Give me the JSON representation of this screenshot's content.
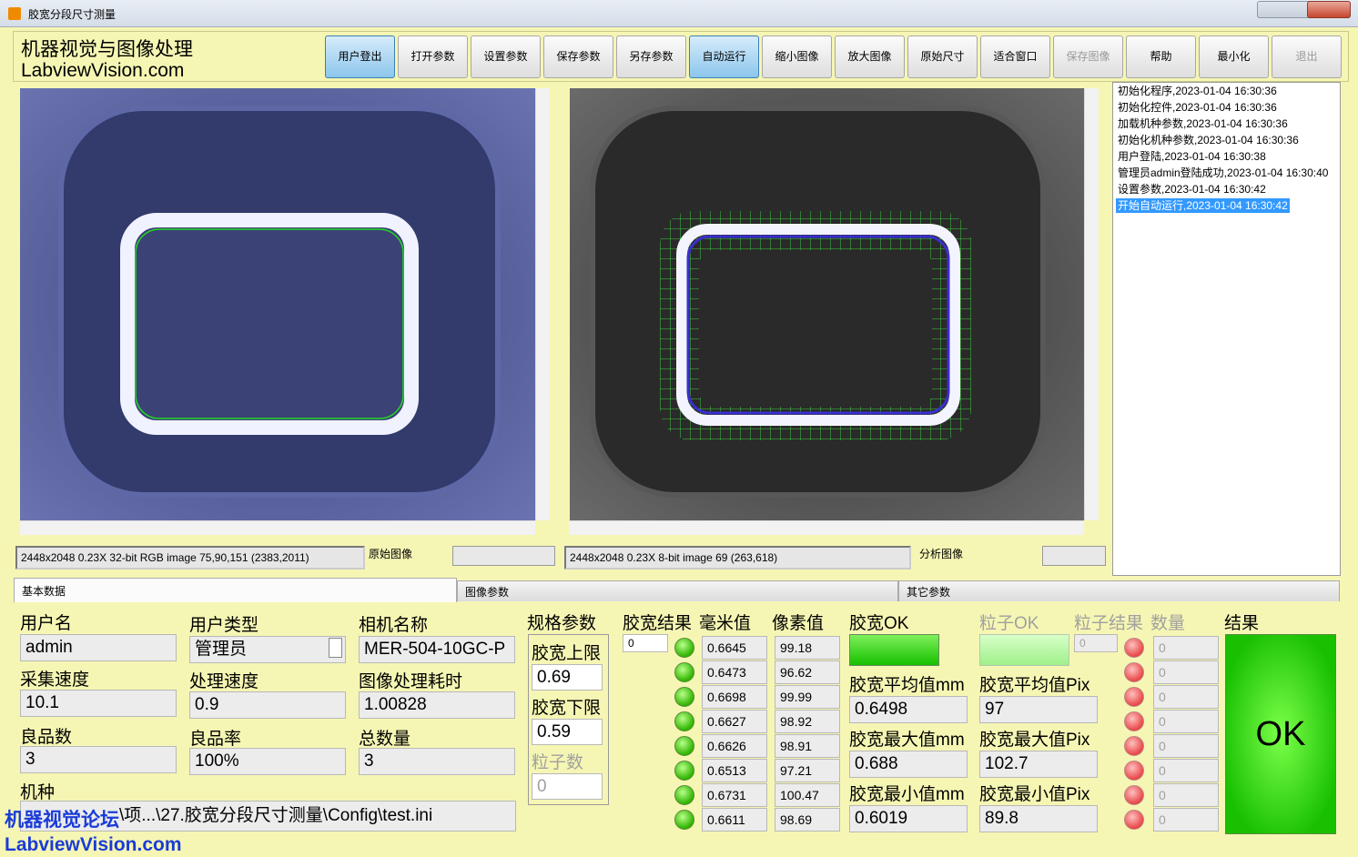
{
  "window": {
    "title": "胶宽分段尺寸测量"
  },
  "header": {
    "brand": [
      "机器视觉与图像处理",
      "LabviewVision.com"
    ]
  },
  "toolbar": {
    "buttons": [
      {
        "label": "用户登出",
        "state": "active"
      },
      {
        "label": "打开参数",
        "state": "normal"
      },
      {
        "label": "设置参数",
        "state": "normal"
      },
      {
        "label": "保存参数",
        "state": "normal"
      },
      {
        "label": "另存参数",
        "state": "normal"
      },
      {
        "label": "自动运行",
        "state": "active"
      },
      {
        "label": "缩小图像",
        "state": "normal"
      },
      {
        "label": "放大图像",
        "state": "normal"
      },
      {
        "label": "原始尺寸",
        "state": "normal"
      },
      {
        "label": "适合窗口",
        "state": "normal"
      },
      {
        "label": "保存图像",
        "state": "disabled"
      },
      {
        "label": "帮助",
        "state": "normal"
      },
      {
        "label": "最小化",
        "state": "normal"
      },
      {
        "label": "退出",
        "state": "disabled"
      }
    ]
  },
  "viewers": [
    {
      "caption": "原始图像",
      "status": "2448x2048 0.23X 32-bit RGB image 75,90,151    (2383,2011)"
    },
    {
      "caption": "分析图像",
      "status": "2448x2048 0.23X 8-bit image 69    (263,618)"
    }
  ],
  "log": {
    "entries": [
      "初始化程序,2023-01-04 16:30:36",
      "初始化控件,2023-01-04 16:30:36",
      "加载机种参数,2023-01-04 16:30:36",
      "初始化机种参数,2023-01-04 16:30:36",
      "用户登陆,2023-01-04 16:30:38",
      "管理员admin登陆成功,2023-01-04 16:30:40",
      "设置参数,2023-01-04 16:30:42",
      "开始自动运行,2023-01-04 16:30:42"
    ],
    "selected": 7
  },
  "tabs": {
    "labels": [
      "基本数据",
      "图像参数",
      "其它参数"
    ],
    "active": 0
  },
  "fields": [
    {
      "label": "用户名",
      "value": "admin"
    },
    {
      "label": "用户类型",
      "value": "管理员"
    },
    {
      "label": "相机名称",
      "value": "MER-504-10GC-P"
    },
    {
      "label": "采集速度",
      "value": "10.1"
    },
    {
      "label": "处理速度",
      "value": "0.9"
    },
    {
      "label": "图像处理耗时",
      "value": "1.00828"
    },
    {
      "label": "良品数",
      "value": "3"
    },
    {
      "label": "良品率",
      "value": "100%"
    },
    {
      "label": "总数量",
      "value": "3"
    }
  ],
  "machine": {
    "label": "机种",
    "value": "\\项...\\27.胶宽分段尺寸测量\\Config\\test.ini"
  },
  "spec": {
    "title": "规格参数",
    "items": [
      {
        "label": "胶宽上限",
        "value": "0.69"
      },
      {
        "label": "胶宽下限",
        "value": "0.59"
      },
      {
        "label": "粒子数",
        "value": "0"
      }
    ]
  },
  "results": {
    "width_result": {
      "label": "胶宽结果",
      "index": "0"
    },
    "mm": {
      "label": "毫米值",
      "values": [
        "0.6645",
        "0.6473",
        "0.6698",
        "0.6627",
        "0.6626",
        "0.6513",
        "0.6731",
        "0.6611"
      ]
    },
    "pix": {
      "label": "像素值",
      "values": [
        "99.18",
        "96.62",
        "99.99",
        "98.92",
        "98.91",
        "97.21",
        "100.47",
        "98.69"
      ]
    },
    "width_ok": {
      "label": "胶宽OK"
    },
    "width_stats": [
      {
        "label": "胶宽平均值mm",
        "value": "0.6498"
      },
      {
        "label": "胶宽最大值mm",
        "value": "0.688"
      },
      {
        "label": "胶宽最小值mm",
        "value": "0.6019"
      }
    ],
    "particle_ok": {
      "label": "粒子OK"
    },
    "particle_result": {
      "label": "粒子结果",
      "index": "0"
    },
    "count": {
      "label": "数量",
      "values": [
        "0",
        "0",
        "0",
        "0",
        "0",
        "0",
        "0",
        "0"
      ]
    },
    "pix_stats": [
      {
        "label": "胶宽平均值Pix",
        "value": "97"
      },
      {
        "label": "胶宽最大值Pix",
        "value": "102.7"
      },
      {
        "label": "胶宽最小值Pix",
        "value": "89.8"
      }
    ],
    "final": {
      "label": "结果",
      "value": "OK"
    }
  },
  "watermark": [
    "机器视觉论坛",
    "LabviewVision.com"
  ]
}
